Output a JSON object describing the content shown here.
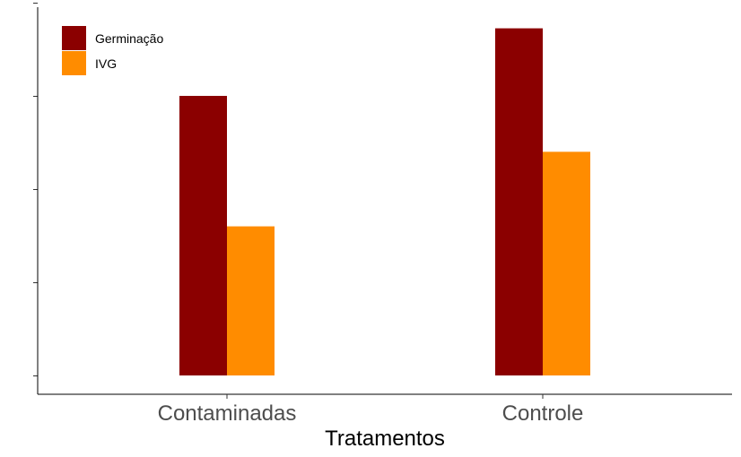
{
  "chart_data": {
    "type": "bar",
    "categories": [
      "Contaminadas",
      "Controle"
    ],
    "series": [
      {
        "name": "Germinação",
        "values": [
          60,
          74.5
        ],
        "color": "#8b0000"
      },
      {
        "name": "IVG",
        "values": [
          32,
          48
        ],
        "color": "#ff8c00"
      }
    ],
    "title": "",
    "xlabel": "Tratamentos",
    "ylabel": "",
    "ylim": [
      0,
      80
    ],
    "yticks": [
      0,
      20,
      40,
      60,
      80
    ],
    "ytick_labels_visible": false,
    "grid": false,
    "legend_position": "top-left"
  }
}
